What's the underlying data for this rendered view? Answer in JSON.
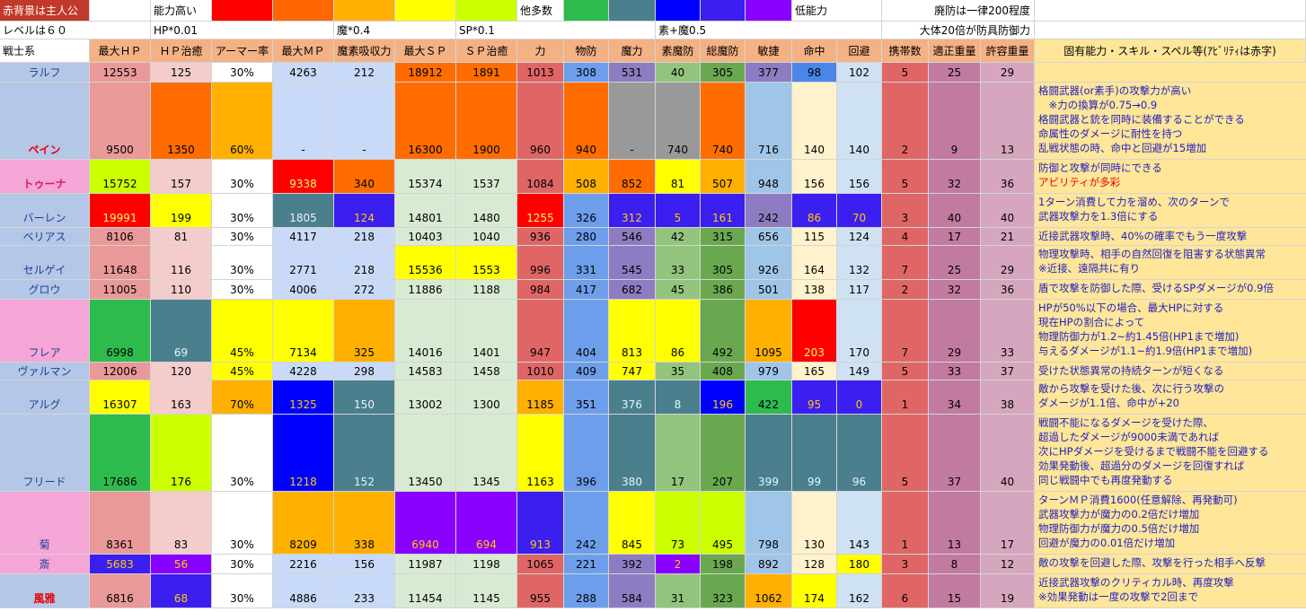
{
  "legend": {
    "bg_note": "赤背景は主人公",
    "level_note": "レベルは６０",
    "hp_factor": "HP*0.01",
    "high_label": "能力高い",
    "mag_factor": "魔*0.4",
    "sp_factor": "SP*0.1",
    "many_label": "他多数",
    "elem_note": "素+魔0.5",
    "low_label": "低能力",
    "def_note1": "廃防は一律200程度",
    "def_note2": "大体20倍が防具防御力",
    "scale_colors": [
      "#ff0000",
      "#ff6600",
      "#ffb000",
      "#ffff00",
      "#ccff00",
      "#2ebb4e",
      "#4a7f8e",
      "#0000ff",
      "#3b1ef0",
      "#8800ff"
    ]
  },
  "headers": [
    "戦士系",
    "最大ＨＰ",
    "ＨＰ治癒",
    "アーマー率",
    "最大ＭＰ",
    "魔素吸収力",
    "最大ＳＰ",
    "ＳＰ治癒",
    "力",
    "物防",
    "魔力",
    "素魔防",
    "総魔防",
    "敏捷",
    "命中",
    "回避",
    "携帯数",
    "適正重量",
    "許容重量",
    "固有能力・スキル・スペル等(ｱﾋﾞﾘﾃｨは赤字)"
  ],
  "rows": [
    {
      "name": "ラルフ",
      "values": [
        "12553",
        "125",
        "30%",
        "4263",
        "212",
        "18912",
        "1891",
        "1013",
        "308",
        "531",
        "40",
        "305",
        "377",
        "98",
        "102",
        "5",
        "25",
        "29"
      ],
      "skills": []
    },
    {
      "name": "ペイン",
      "values": [
        "9500",
        "1350",
        "60%",
        "-",
        "-",
        "16300",
        "1900",
        "960",
        "940",
        "-",
        "740",
        "740",
        "716",
        "140",
        "140",
        "2",
        "9",
        "13"
      ],
      "skills": [
        "格闘武器(or素手)の攻撃力が高い",
        "　※力の換算が0.75→0.9",
        "格闘武器と銃を同時に装備することができる",
        "命属性のダメージに耐性を持つ",
        "乱戦状態の時、命中と回避が15増加"
      ]
    },
    {
      "name": "トゥーナ",
      "values": [
        "15752",
        "157",
        "30%",
        "9338",
        "340",
        "15374",
        "1537",
        "1084",
        "508",
        "852",
        "81",
        "507",
        "948",
        "156",
        "156",
        "5",
        "32",
        "36"
      ],
      "skills": [
        "防御と攻撃が同時にできる",
        "アビリティが多彩"
      ]
    },
    {
      "name": "バーレン",
      "values": [
        "19991",
        "199",
        "30%",
        "1805",
        "124",
        "14801",
        "1480",
        "1255",
        "326",
        "312",
        "5",
        "161",
        "242",
        "86",
        "70",
        "3",
        "40",
        "40"
      ],
      "skills": [
        "1ターン消費して力を溜め、次のターンで",
        "武器攻撃力を1.3倍にする"
      ]
    },
    {
      "name": "ベリアス",
      "values": [
        "8106",
        "81",
        "30%",
        "4117",
        "218",
        "10403",
        "1040",
        "936",
        "280",
        "546",
        "42",
        "315",
        "656",
        "115",
        "124",
        "4",
        "17",
        "21"
      ],
      "skills": [
        "近接武器攻撃時、40%の確率でもう一度攻撃"
      ]
    },
    {
      "name": "セルゲイ",
      "values": [
        "11648",
        "116",
        "30%",
        "2771",
        "218",
        "15536",
        "1553",
        "996",
        "331",
        "545",
        "33",
        "305",
        "926",
        "164",
        "132",
        "7",
        "25",
        "29"
      ],
      "skills": [
        "物理攻撃時、相手の自然回復を阻害する状態異常",
        "※近接、遠隔共に有り"
      ]
    },
    {
      "name": "グロウ",
      "values": [
        "11005",
        "110",
        "30%",
        "4006",
        "272",
        "11886",
        "1188",
        "984",
        "417",
        "682",
        "45",
        "386",
        "501",
        "138",
        "117",
        "2",
        "32",
        "36"
      ],
      "skills": [
        "盾で攻撃を防御した際、受けるSPダメージが0.9倍"
      ]
    },
    {
      "name": "フレア",
      "values": [
        "6998",
        "69",
        "45%",
        "7134",
        "325",
        "14016",
        "1401",
        "947",
        "404",
        "813",
        "86",
        "492",
        "1095",
        "203",
        "170",
        "7",
        "29",
        "33"
      ],
      "skills": [
        "HPが50%以下の場合、最大HPに対する",
        "現在HPの割合によって",
        "物理防御力が1.2~約1.45倍(HP1まで増加)",
        "与えるダメージが1.1~約1.9倍(HP1まで増加)"
      ]
    },
    {
      "name": "ヴァルマン",
      "values": [
        "12006",
        "120",
        "45%",
        "4228",
        "298",
        "14583",
        "1458",
        "1010",
        "409",
        "747",
        "35",
        "408",
        "979",
        "165",
        "149",
        "5",
        "33",
        "37"
      ],
      "skills": [
        "受けた状態異常の持続ターンが短くなる"
      ]
    },
    {
      "name": "アルグ",
      "values": [
        "16307",
        "163",
        "70%",
        "1325",
        "150",
        "13002",
        "1300",
        "1185",
        "351",
        "376",
        "8",
        "196",
        "422",
        "95",
        "0",
        "1",
        "34",
        "38"
      ],
      "skills": [
        "敵から攻撃を受けた後、次に行う攻撃の",
        "ダメージが1.1倍、命中が+20"
      ]
    },
    {
      "name": "フリード",
      "values": [
        "17686",
        "176",
        "30%",
        "1218",
        "152",
        "13450",
        "1345",
        "1163",
        "396",
        "380",
        "17",
        "207",
        "399",
        "99",
        "96",
        "5",
        "37",
        "40"
      ],
      "skills": [
        "戦闘不能になるダメージを受けた際、",
        "超過したダメージが9000未満であれば",
        "次にHPダメージを受けるまで戦闘不能を回避する",
        "効果発動後、超過分のダメージを回復すれば",
        "同じ戦闘中でも再度発動する"
      ]
    },
    {
      "name": "菊",
      "values": [
        "8361",
        "83",
        "30%",
        "8209",
        "338",
        "6940",
        "694",
        "913",
        "242",
        "845",
        "73",
        "495",
        "798",
        "130",
        "143",
        "1",
        "13",
        "17"
      ],
      "skills": [
        "ターンＭＰ消費1600(任意解除、再発動可)",
        "武器攻撃力が魔力の0.2倍だけ増加",
        "物理防御力が魔力の0.5倍だけ増加",
        "回避が魔力の0.01倍だけ増加"
      ]
    },
    {
      "name": "斎",
      "values": [
        "5683",
        "56",
        "30%",
        "2216",
        "156",
        "11987",
        "1198",
        "1065",
        "221",
        "392",
        "2",
        "198",
        "892",
        "128",
        "180",
        "3",
        "8",
        "12"
      ],
      "skills": [
        "敵の攻撃を回避した際、攻撃を行った相手へ反撃"
      ]
    },
    {
      "name": "風雅",
      "values": [
        "6816",
        "68",
        "30%",
        "4886",
        "233",
        "11454",
        "1145",
        "955",
        "288",
        "584",
        "31",
        "323",
        "1062",
        "174",
        "162",
        "6",
        "15",
        "19"
      ],
      "skills": [
        "近接武器攻撃のクリティカル時、再度攻撃",
        "※効果発動は一度の攻撃で2回まで"
      ]
    }
  ],
  "colors": {
    "name_bg": [
      "#b4c7e7",
      "#b4c7e7",
      "#f4a6d7",
      "#b4c7e7",
      "#b4c7e7",
      "#b4c7e7",
      "#b4c7e7",
      "#f4a6d7",
      "#b4c7e7",
      "#b4c7e7",
      "#b4c7e7",
      "#f4a6d7",
      "#f4a6d7",
      "#b4c7e7"
    ],
    "cells": [
      [
        "#ea9999",
        "#f4cccc",
        "#ffffff",
        "#c9daf8",
        "#c9daf8",
        "#ff6d01",
        "#ff6d01",
        "#e06666",
        "#6d9eeb",
        "#8e7cc3",
        "#93c47d",
        "#6aa84f",
        "#8e7cc3",
        "#4a86e8",
        "#cfe2f3",
        "#e06666",
        "#c27ba0",
        "#d5a6bd"
      ],
      [
        "#ea9999",
        "#ff6d01",
        "#ffb000",
        "#c9daf8",
        "#c9daf8",
        "#ff6d01",
        "#ff6d01",
        "#e06666",
        "#ff6d01",
        "#999999",
        "#999999",
        "#ff6d01",
        "#9fc5e8",
        "#fff2cc",
        "#cfe2f3",
        "#e06666",
        "#c27ba0",
        "#d5a6bd"
      ],
      [
        "#ccff00",
        "#f4cccc",
        "#ffffff",
        "#ff0000",
        "#ff6d01",
        "#d9ead3",
        "#d9ead3",
        "#e06666",
        "#ffb000",
        "#ff6d01",
        "#ffff00",
        "#ffb000",
        "#9fc5e8",
        "#fff2cc",
        "#cfe2f3",
        "#e06666",
        "#c27ba0",
        "#d5a6bd"
      ],
      [
        "#ff0000",
        "#ffff00",
        "#ffffff",
        "#4a7f8e",
        "#3b1ef0",
        "#d9ead3",
        "#d9ead3",
        "#ff0000",
        "#6d9eeb",
        "#3b1ef0",
        "#3b1ef0",
        "#3b1ef0",
        "#8e7cc3",
        "#3b1ef0",
        "#3b1ef0",
        "#e06666",
        "#c27ba0",
        "#d5a6bd"
      ],
      [
        "#ea9999",
        "#f4cccc",
        "#ffffff",
        "#c9daf8",
        "#c9daf8",
        "#d9ead3",
        "#d9ead3",
        "#e06666",
        "#6d9eeb",
        "#8e7cc3",
        "#93c47d",
        "#6aa84f",
        "#9fc5e8",
        "#fff2cc",
        "#cfe2f3",
        "#e06666",
        "#c27ba0",
        "#d5a6bd"
      ],
      [
        "#ea9999",
        "#f4cccc",
        "#ffffff",
        "#c9daf8",
        "#c9daf8",
        "#ffff00",
        "#ffff00",
        "#e06666",
        "#6d9eeb",
        "#8e7cc3",
        "#93c47d",
        "#6aa84f",
        "#9fc5e8",
        "#fff2cc",
        "#cfe2f3",
        "#e06666",
        "#c27ba0",
        "#d5a6bd"
      ],
      [
        "#ea9999",
        "#f4cccc",
        "#ffffff",
        "#c9daf8",
        "#c9daf8",
        "#d9ead3",
        "#d9ead3",
        "#e06666",
        "#6d9eeb",
        "#8e7cc3",
        "#93c47d",
        "#6aa84f",
        "#9fc5e8",
        "#fff2cc",
        "#cfe2f3",
        "#e06666",
        "#c27ba0",
        "#d5a6bd"
      ],
      [
        "#2ebb4e",
        "#4a7f8e",
        "#ffff00",
        "#ffff00",
        "#ffb000",
        "#d9ead3",
        "#d9ead3",
        "#e06666",
        "#6d9eeb",
        "#ffff00",
        "#ffff00",
        "#6aa84f",
        "#ffb000",
        "#ff0000",
        "#cfe2f3",
        "#e06666",
        "#c27ba0",
        "#d5a6bd"
      ],
      [
        "#ea9999",
        "#f4cccc",
        "#ffff00",
        "#c9daf8",
        "#c9daf8",
        "#d9ead3",
        "#d9ead3",
        "#e06666",
        "#6d9eeb",
        "#ffff00",
        "#93c47d",
        "#6aa84f",
        "#9fc5e8",
        "#fff2cc",
        "#cfe2f3",
        "#e06666",
        "#c27ba0",
        "#d5a6bd"
      ],
      [
        "#ffff00",
        "#f4cccc",
        "#ffb000",
        "#0000ff",
        "#4a7f8e",
        "#d9ead3",
        "#d9ead3",
        "#ffb000",
        "#6d9eeb",
        "#4a7f8e",
        "#4a7f8e",
        "#0000ff",
        "#2ebb4e",
        "#3b1ef0",
        "#3b1ef0",
        "#e06666",
        "#c27ba0",
        "#d5a6bd"
      ],
      [
        "#2ebb4e",
        "#ccff00",
        "#ffffff",
        "#0000ff",
        "#4a7f8e",
        "#d9ead3",
        "#d9ead3",
        "#ffff00",
        "#6d9eeb",
        "#4a7f8e",
        "#93c47d",
        "#6aa84f",
        "#4a7f8e",
        "#4a7f8e",
        "#4a7f8e",
        "#e06666",
        "#c27ba0",
        "#d5a6bd"
      ],
      [
        "#ea9999",
        "#f4cccc",
        "#ffffff",
        "#ffb000",
        "#ffb000",
        "#8800ff",
        "#8800ff",
        "#3b1ef0",
        "#6d9eeb",
        "#ffff00",
        "#ccff00",
        "#ccff00",
        "#9fc5e8",
        "#fff2cc",
        "#cfe2f3",
        "#e06666",
        "#c27ba0",
        "#d5a6bd"
      ],
      [
        "#3b1ef0",
        "#8800ff",
        "#ffffff",
        "#c9daf8",
        "#c9daf8",
        "#d9ead3",
        "#d9ead3",
        "#e06666",
        "#6d9eeb",
        "#8e7cc3",
        "#8800ff",
        "#6aa84f",
        "#9fc5e8",
        "#fff2cc",
        "#ffff00",
        "#e06666",
        "#c27ba0",
        "#d5a6bd"
      ],
      [
        "#ea9999",
        "#3b1ef0",
        "#ffffff",
        "#c9daf8",
        "#c9daf8",
        "#d9ead3",
        "#d9ead3",
        "#e06666",
        "#6d9eeb",
        "#8e7cc3",
        "#93c47d",
        "#6aa84f",
        "#ffb000",
        "#ffff00",
        "#cfe2f3",
        "#e06666",
        "#c27ba0",
        "#d5a6bd"
      ]
    ]
  }
}
